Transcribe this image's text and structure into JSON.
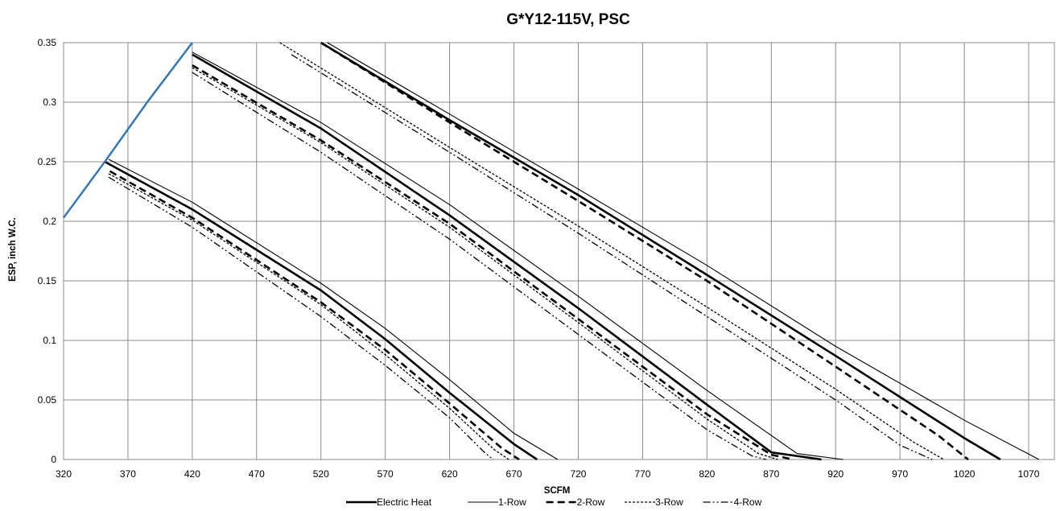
{
  "chart_data": {
    "type": "line",
    "title": "G*Y12-115V, PSC",
    "xlabel": "SCFM",
    "ylabel": "ESP, inch W.C.",
    "xlim": [
      320,
      1090
    ],
    "ylim": [
      0,
      0.35
    ],
    "xticks": [
      320,
      370,
      420,
      470,
      520,
      570,
      620,
      670,
      720,
      770,
      820,
      870,
      920,
      970,
      1020,
      1070
    ],
    "yticks": [
      0,
      0.05,
      0.1,
      0.15,
      0.2,
      0.25,
      0.3,
      0.35
    ],
    "ytick_labels": [
      "0",
      "0.05",
      "0.1",
      "0.15",
      "0.2",
      "0.25",
      "0.3",
      "0.35"
    ],
    "grid": true,
    "legend_position": "bottom",
    "legend": [
      "Electric Heat",
      "1-Row",
      "2-Row",
      "3-Row",
      "4-Row"
    ],
    "limit_curve": {
      "color": "#2e75b6",
      "points": [
        [
          320,
          0.203
        ],
        [
          352,
          0.25
        ],
        [
          385,
          0.3
        ],
        [
          420,
          0.35
        ]
      ]
    },
    "speed_groups": [
      {
        "series": [
          {
            "name": "Electric Heat",
            "points": [
              [
                352,
                0.25
              ],
              [
                420,
                0.21
              ],
              [
                520,
                0.142
              ],
              [
                570,
                0.101
              ],
              [
                620,
                0.056
              ],
              [
                670,
                0.013
              ],
              [
                688,
                0
              ]
            ]
          },
          {
            "name": "1-Row",
            "points": [
              [
                355,
                0.252
              ],
              [
                420,
                0.216
              ],
              [
                520,
                0.148
              ],
              [
                570,
                0.11
              ],
              [
                620,
                0.067
              ],
              [
                670,
                0.022
              ],
              [
                704,
                0
              ]
            ]
          },
          {
            "name": "2-Row",
            "points": [
              [
                356,
                0.242
              ],
              [
                420,
                0.203
              ],
              [
                520,
                0.132
              ],
              [
                570,
                0.092
              ],
              [
                620,
                0.047
              ],
              [
                660,
                0.01
              ],
              [
                674,
                0
              ]
            ]
          },
          {
            "name": "3-Row",
            "points": [
              [
                355,
                0.24
              ],
              [
                420,
                0.201
              ],
              [
                520,
                0.13
              ],
              [
                570,
                0.088
              ],
              [
                620,
                0.043
              ],
              [
                655,
                0.008
              ],
              [
                666,
                0
              ]
            ]
          },
          {
            "name": "4-Row",
            "points": [
              [
                355,
                0.237
              ],
              [
                420,
                0.195
              ],
              [
                520,
                0.12
              ],
              [
                570,
                0.079
              ],
              [
                620,
                0.035
              ],
              [
                648,
                0.005
              ],
              [
                654,
                0
              ]
            ]
          }
        ]
      },
      {
        "series": [
          {
            "name": "Electric Heat",
            "points": [
              [
                420,
                0.34
              ],
              [
                520,
                0.278
              ],
              [
                620,
                0.205
              ],
              [
                720,
                0.127
              ],
              [
                820,
                0.046
              ],
              [
                870,
                0.006
              ],
              [
                909,
                0
              ]
            ]
          },
          {
            "name": "1-Row",
            "points": [
              [
                420,
                0.342
              ],
              [
                520,
                0.283
              ],
              [
                620,
                0.214
              ],
              [
                720,
                0.137
              ],
              [
                820,
                0.058
              ],
              [
                890,
                0.005
              ],
              [
                926,
                0
              ]
            ]
          },
          {
            "name": "2-Row",
            "points": [
              [
                420,
                0.331
              ],
              [
                520,
                0.268
              ],
              [
                620,
                0.198
              ],
              [
                720,
                0.118
              ],
              [
                820,
                0.038
              ],
              [
                870,
                0.004
              ],
              [
                887,
                0
              ]
            ]
          },
          {
            "name": "3-Row",
            "points": [
              [
                420,
                0.329
              ],
              [
                520,
                0.266
              ],
              [
                620,
                0.195
              ],
              [
                720,
                0.115
              ],
              [
                820,
                0.034
              ],
              [
                860,
                0.005
              ],
              [
                875,
                0
              ]
            ]
          },
          {
            "name": "4-Row",
            "points": [
              [
                420,
                0.325
              ],
              [
                520,
                0.258
              ],
              [
                620,
                0.185
              ],
              [
                720,
                0.105
              ],
              [
                820,
                0.025
              ],
              [
                855,
                0.003
              ],
              [
                866,
                0
              ]
            ]
          }
        ]
      },
      {
        "series": [
          {
            "name": "Electric Heat",
            "points": [
              [
                520,
                0.35
              ],
              [
                620,
                0.285
              ],
              [
                720,
                0.222
              ],
              [
                820,
                0.155
              ],
              [
                920,
                0.087
              ],
              [
                1020,
                0.018
              ],
              [
                1048,
                0
              ]
            ]
          },
          {
            "name": "1-Row",
            "points": [
              [
                525,
                0.35
              ],
              [
                620,
                0.29
              ],
              [
                720,
                0.227
              ],
              [
                820,
                0.163
              ],
              [
                920,
                0.095
              ],
              [
                1020,
                0.033
              ],
              [
                1078,
                0
              ]
            ]
          },
          {
            "name": "2-Row",
            "points": [
              [
                520,
                0.35
              ],
              [
                620,
                0.283
              ],
              [
                720,
                0.217
              ],
              [
                820,
                0.15
              ],
              [
                920,
                0.078
              ],
              [
                1000,
                0.02
              ],
              [
                1023,
                0
              ]
            ]
          },
          {
            "name": "3-Row",
            "points": [
              [
                488,
                0.35
              ],
              [
                620,
                0.262
              ],
              [
                720,
                0.196
              ],
              [
                820,
                0.128
              ],
              [
                920,
                0.059
              ],
              [
                980,
                0.015
              ],
              [
                1004,
                0
              ]
            ]
          },
          {
            "name": "4-Row",
            "points": [
              [
                497,
                0.34
              ],
              [
                620,
                0.258
              ],
              [
                720,
                0.19
              ],
              [
                820,
                0.12
              ],
              [
                920,
                0.05
              ],
              [
                970,
                0.012
              ],
              [
                995,
                0
              ]
            ]
          }
        ]
      }
    ],
    "styles": {
      "Electric Heat": {
        "color": "#000000"
      },
      "1-Row": {
        "color": "#000000"
      },
      "2-Row": {
        "color": "#000000"
      },
      "3-Row": {
        "color": "#000000"
      },
      "4-Row": {
        "color": "#000000"
      }
    }
  }
}
